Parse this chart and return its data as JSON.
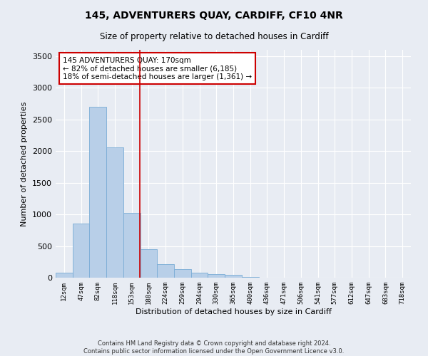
{
  "title": "145, ADVENTURERS QUAY, CARDIFF, CF10 4NR",
  "subtitle": "Size of property relative to detached houses in Cardiff",
  "xlabel": "Distribution of detached houses by size in Cardiff",
  "ylabel": "Number of detached properties",
  "bar_color": "#b8cfe8",
  "bar_edge_color": "#7aacd6",
  "background_color": "#e8ecf3",
  "grid_color": "#ffffff",
  "vline_color": "#cc0000",
  "annotation_text": "145 ADVENTURERS QUAY: 170sqm\n← 82% of detached houses are smaller (6,185)\n18% of semi-detached houses are larger (1,361) →",
  "annotation_box_color": "#cc0000",
  "categories": [
    "12sqm",
    "47sqm",
    "82sqm",
    "118sqm",
    "153sqm",
    "188sqm",
    "224sqm",
    "259sqm",
    "294sqm",
    "330sqm",
    "365sqm",
    "400sqm",
    "436sqm",
    "471sqm",
    "506sqm",
    "541sqm",
    "577sqm",
    "612sqm",
    "647sqm",
    "683sqm",
    "718sqm"
  ],
  "values": [
    75,
    850,
    2700,
    2060,
    1020,
    450,
    210,
    130,
    80,
    60,
    40,
    15,
    5,
    2,
    1,
    0,
    0,
    0,
    0,
    0,
    0
  ],
  "ylim": [
    0,
    3600
  ],
  "yticks": [
    0,
    500,
    1000,
    1500,
    2000,
    2500,
    3000,
    3500
  ],
  "footer": "Contains HM Land Registry data © Crown copyright and database right 2024.\nContains public sector information licensed under the Open Government Licence v3.0.",
  "figsize": [
    6.0,
    5.0
  ],
  "dpi": 100
}
